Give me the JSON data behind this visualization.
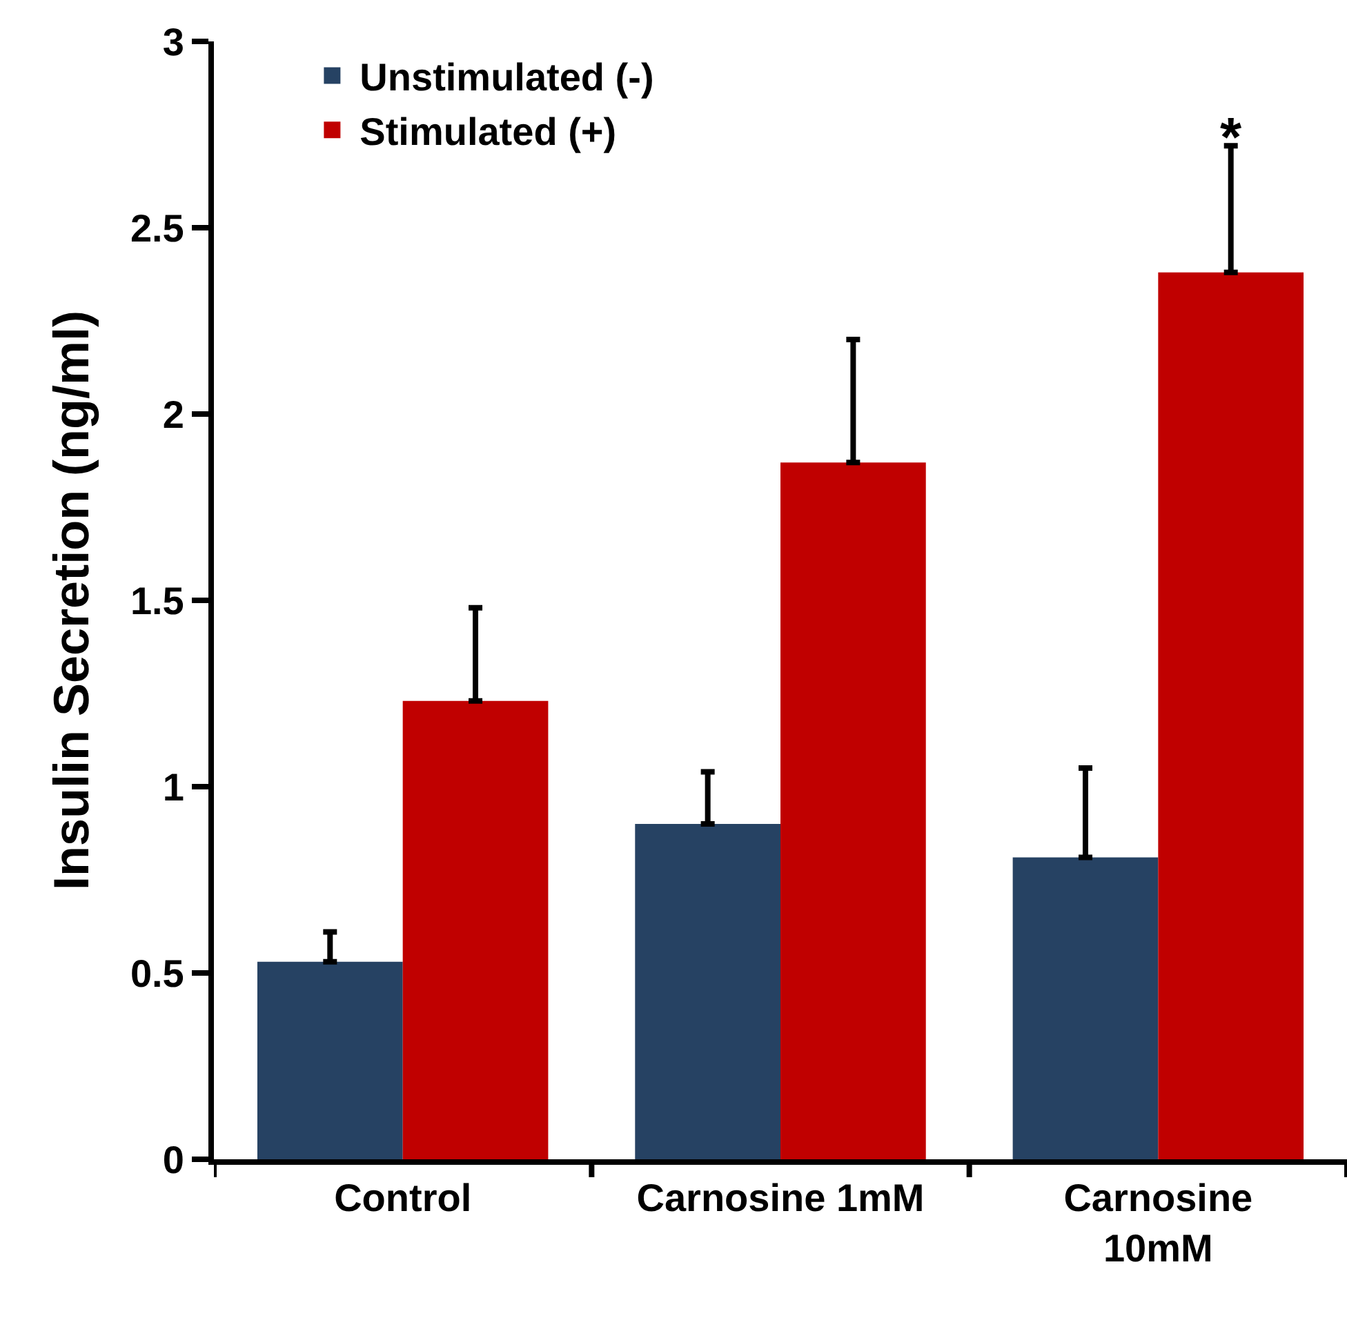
{
  "chart_data": {
    "type": "bar",
    "ylabel": "Insulin Secretion (ng/ml)",
    "categories": [
      "Control",
      "Carnosine 1mM",
      "Carnosine 10mM"
    ],
    "series": [
      {
        "name": "Unstimulated (-)",
        "color": "#264263",
        "values": [
          0.53,
          0.9,
          0.81
        ],
        "errors": [
          [
            0.53,
            0.61
          ],
          [
            0.9,
            1.04
          ],
          [
            0.81,
            1.05
          ]
        ]
      },
      {
        "name": "Stimulated (+)",
        "color": "#c00000",
        "values": [
          1.23,
          1.87,
          2.38
        ],
        "errors": [
          [
            1.23,
            1.48
          ],
          [
            1.87,
            2.2
          ],
          [
            2.38,
            2.72
          ]
        ]
      }
    ],
    "ylim": [
      0,
      3
    ],
    "yticks": [
      0,
      0.5,
      1,
      1.5,
      2,
      2.5,
      3
    ],
    "grid": false,
    "legend": "top left",
    "annotations": [
      "*"
    ]
  }
}
